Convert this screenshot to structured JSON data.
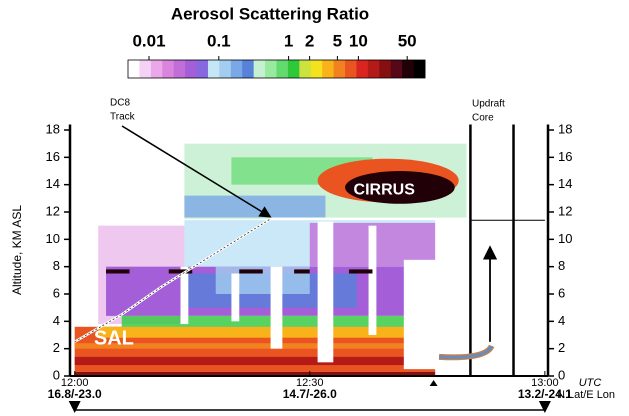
{
  "chart_data": {
    "type": "curtain",
    "title": "Aerosol Scattering Ratio",
    "colorbar": {
      "log": true,
      "lim": [
        0.005,
        90
      ],
      "ticks": [
        0.01,
        0.1,
        1,
        2,
        5,
        10,
        50
      ],
      "colors": [
        "#ffffff",
        "#f4d2f4",
        "#eaa8ea",
        "#da84dc",
        "#c26ed8",
        "#a45ed8",
        "#8668e0",
        "#c4e6f6",
        "#a2cdef",
        "#7aa8e6",
        "#5682da",
        "#c6f0d2",
        "#98ea9e",
        "#62da6e",
        "#2ec83a",
        "#cce23e",
        "#f4e21e",
        "#f8b21a",
        "#f28220",
        "#ea5420",
        "#da2420",
        "#b41a18",
        "#861010",
        "#560818",
        "#220008",
        "#000000"
      ]
    },
    "y_label": "Altitude, KM ASL",
    "ylim": [
      0,
      18.4
    ],
    "yticks": [
      0,
      2,
      4,
      6,
      8,
      10,
      12,
      14,
      16,
      18
    ],
    "xlim": [
      -0.6,
      60.4
    ],
    "xticks": [
      {
        "value": 0,
        "label": "12:00"
      },
      {
        "value": 30,
        "label": "12:30"
      },
      {
        "value": 60,
        "label": "13:00"
      }
    ],
    "x_label": "UTC",
    "position_labels": [
      "16.8/-23.0",
      "14.7/-26.0",
      "13.2/-24.1"
    ],
    "position_label": "N Lat/E Lon",
    "annotations": [
      {
        "lines": [
          "DC8",
          "Track"
        ]
      },
      {
        "lines": [
          "Updraft",
          "Core"
        ]
      },
      {
        "lines": [
          "CIRRUS"
        ]
      },
      {
        "lines": [
          "SAL"
        ]
      }
    ]
  }
}
